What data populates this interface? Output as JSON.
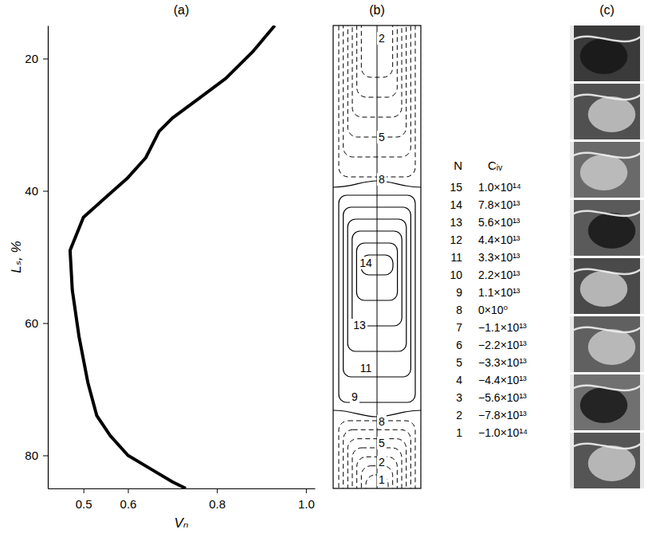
{
  "chart_data": [
    {
      "type": "line",
      "title": "(a)",
      "x_label": "Vₙ",
      "y_label": "Lₛ, %",
      "series": [
        {
          "color": "#000000",
          "x": [
            0.93,
            0.88,
            0.82,
            0.76,
            0.7,
            0.67,
            0.64,
            0.6,
            0.55,
            0.5,
            0.47,
            0.475,
            0.49,
            0.51,
            0.53,
            0.56,
            0.6,
            0.65,
            0.7,
            0.73
          ],
          "values": [
            15,
            19,
            23,
            26,
            29,
            31,
            35,
            38,
            41,
            44,
            49,
            55,
            62,
            69,
            74,
            77,
            80,
            82,
            84,
            85
          ]
        }
      ],
      "xlim": [
        0.42,
        1.02
      ],
      "ylim": [
        85,
        15
      ],
      "xticks": [
        0.5,
        0.6,
        0.8,
        {
          "value": 1,
          "label": "1.0"
        }
      ],
      "yticks": [
        20,
        40,
        60,
        80
      ]
    },
    {
      "type": "contour",
      "title": "(b)",
      "legend_columns": [
        "N",
        "Cᵢᵥ"
      ],
      "levels": [
        {
          "n": 15,
          "value": 100000000000000.0,
          "label": "1.0×10¹⁴"
        },
        {
          "n": 14,
          "value": 78000000000000.0,
          "label": "7.8×10¹³"
        },
        {
          "n": 13,
          "value": 56000000000000.0,
          "label": "5.6×10¹³"
        },
        {
          "n": 12,
          "value": 44000000000000.0,
          "label": "4.4×10¹³"
        },
        {
          "n": 11,
          "value": 33000000000000.0,
          "label": "3.3×10¹³"
        },
        {
          "n": 10,
          "value": 22000000000000.0,
          "label": "2.2×10¹³"
        },
        {
          "n": 9,
          "value": 11000000000000.0,
          "label": "1.1×10¹³"
        },
        {
          "n": 8,
          "value": 0,
          "label": "0×10⁰"
        },
        {
          "n": 7,
          "value": -11000000000000.0,
          "label": "−1.1×10¹³"
        },
        {
          "n": 6,
          "value": -22000000000000.0,
          "label": "−2.2×10¹³"
        },
        {
          "n": 5,
          "value": -33000000000000.0,
          "label": "−3.3×10¹³"
        },
        {
          "n": 4,
          "value": -44000000000000.0,
          "label": "−4.4×10¹³"
        },
        {
          "n": 3,
          "value": -56000000000000.0,
          "label": "−5.6×10¹³"
        },
        {
          "n": 2,
          "value": -78000000000000.0,
          "label": "−7.8×10¹³"
        },
        {
          "n": 1,
          "value": -100000000000000.0,
          "label": "−1.0×10¹⁴"
        }
      ],
      "contour_labels": [
        2,
        5,
        8,
        14,
        13,
        11,
        9,
        8,
        5,
        2,
        1
      ]
    },
    {
      "type": "image",
      "title": "(c)"
    }
  ]
}
